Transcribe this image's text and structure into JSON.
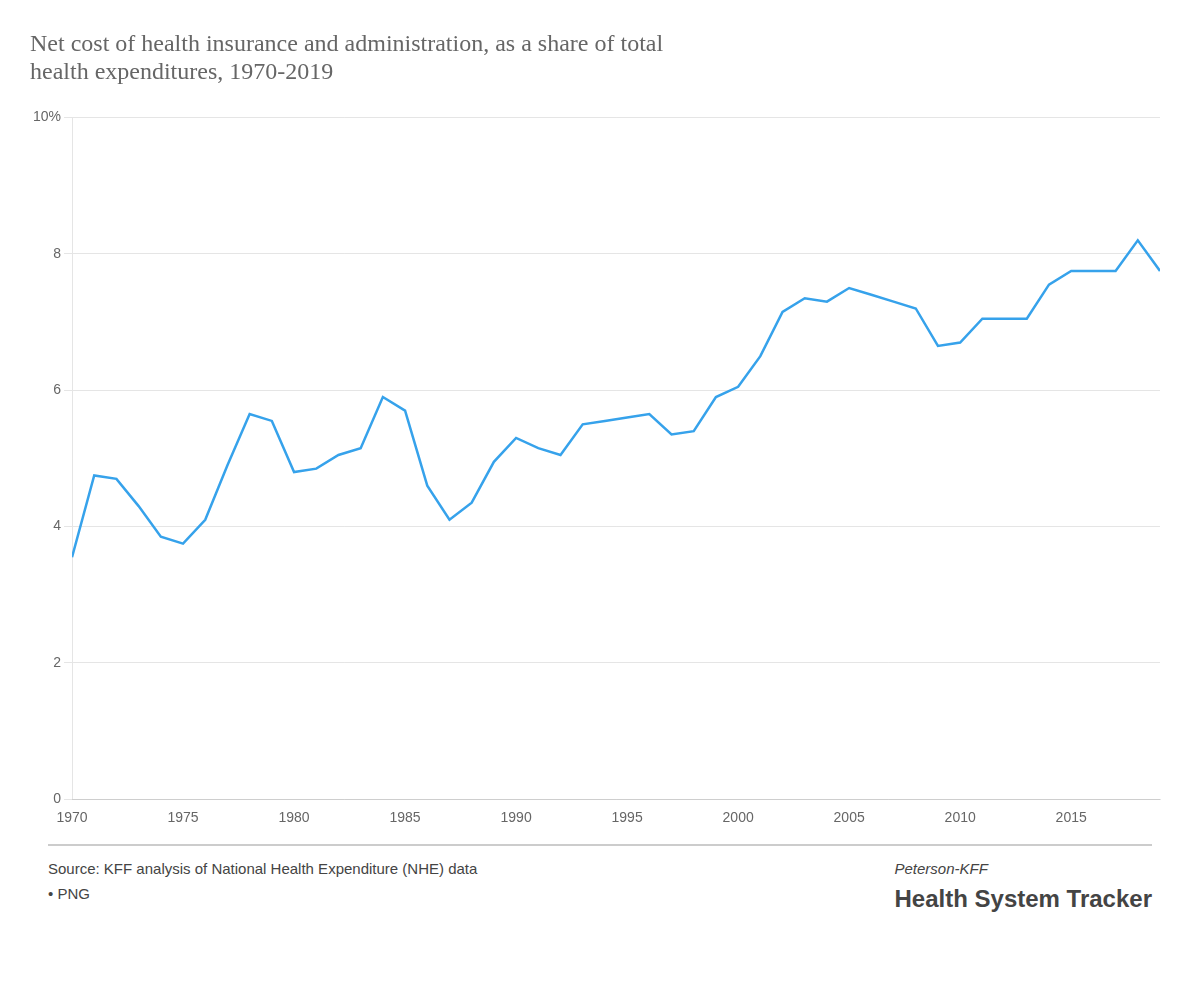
{
  "chart_data": {
    "type": "line",
    "title": [
      "Net cost of health insurance and administration, as a share of total",
      "health expenditures, 1970-2019"
    ],
    "x": [
      1970,
      1971,
      1972,
      1973,
      1974,
      1975,
      1976,
      1977,
      1978,
      1979,
      1980,
      1981,
      1982,
      1983,
      1984,
      1985,
      1986,
      1987,
      1988,
      1989,
      1990,
      1991,
      1992,
      1993,
      1994,
      1995,
      1996,
      1997,
      1998,
      1999,
      2000,
      2001,
      2002,
      2003,
      2004,
      2005,
      2006,
      2007,
      2008,
      2009,
      2010,
      2011,
      2012,
      2013,
      2014,
      2015,
      2016,
      2017,
      2018,
      2019
    ],
    "values": [
      3.55,
      4.75,
      4.7,
      4.3,
      3.85,
      3.75,
      4.1,
      4.9,
      5.65,
      5.55,
      4.8,
      4.85,
      5.05,
      5.15,
      5.9,
      5.7,
      4.6,
      4.1,
      4.35,
      4.95,
      5.3,
      5.15,
      5.05,
      5.5,
      5.55,
      5.6,
      5.65,
      5.35,
      5.4,
      5.9,
      6.05,
      6.5,
      7.15,
      7.35,
      7.3,
      7.5,
      7.4,
      7.3,
      7.2,
      6.65,
      6.7,
      7.05,
      7.05,
      7.05,
      7.55,
      7.75,
      7.75,
      7.75,
      8.2,
      7.75
    ],
    "xlim": [
      1970,
      2019
    ],
    "xticks": [
      1970,
      1975,
      1980,
      1985,
      1990,
      1995,
      2000,
      2005,
      2010,
      2015
    ],
    "ylim": [
      0,
      10
    ],
    "yticks": [
      0,
      2,
      4,
      6,
      8,
      {
        "value": 10,
        "label": "10%"
      }
    ],
    "grid": "y",
    "annotations": [
      "Source: KFF analysis of National Health Expenditure (NHE) data",
      "• PNG",
      "Peterson-KFF",
      "Health System Tracker"
    ]
  }
}
